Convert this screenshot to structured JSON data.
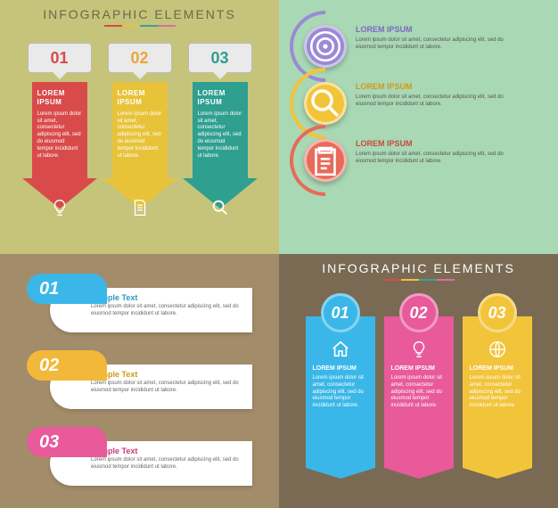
{
  "global": {
    "title_text": "INFOGRAPHIC ELEMENTS",
    "underline_colors": [
      "#d94a4a",
      "#e8c33a",
      "#3aa0a0",
      "#e06aa0"
    ],
    "lorem_short": "LOREM IPSUM",
    "lorem_body": "Lorem ipsum dolor sit amet, consectetur adipiscing elit, sed do eiusmod tempor incididunt ut labore."
  },
  "q1": {
    "type": "infographic",
    "background_color": "#c5c47a",
    "title_color": "#6a6a4a",
    "arrows": [
      {
        "num": "01",
        "num_color": "#d94a4a",
        "fill": "#d94a4a",
        "point": "#c03a3a",
        "icon": "bulb"
      },
      {
        "num": "02",
        "num_color": "#e8a63a",
        "fill": "#e8c33a",
        "point": "#cfa32a",
        "icon": "doc"
      },
      {
        "num": "03",
        "num_color": "#2f9f8f",
        "fill": "#2f9f8f",
        "point": "#1f7f6f",
        "icon": "search"
      }
    ]
  },
  "q2": {
    "type": "infographic",
    "background_color": "#a9d8b4",
    "items": [
      {
        "circle": "#9a8ad6",
        "arc": "#9a8ad6",
        "header_color": "#7a6ac6",
        "icon": "target"
      },
      {
        "circle": "#f2c43a",
        "arc": "#f2c43a",
        "header_color": "#d09a1a",
        "icon": "search"
      },
      {
        "circle": "#e86a5a",
        "arc": "#e86a5a",
        "header_color": "#c84a3a",
        "icon": "clipboard"
      }
    ]
  },
  "q3": {
    "type": "infographic",
    "background_color": "#a38c6a",
    "sample_label": "Sample Text",
    "items": [
      {
        "num": "01",
        "tab": "#3ab7e8",
        "stripe": "#3ab7e8",
        "header_color": "#2a97c8"
      },
      {
        "num": "02",
        "tab": "#f2b83a",
        "stripe": "#f2b83a",
        "header_color": "#d0981a"
      },
      {
        "num": "03",
        "tab": "#e85a9a",
        "stripe": "#e85a9a",
        "header_color": "#c83a7a"
      }
    ]
  },
  "q4": {
    "type": "infographic",
    "background_color": "#7a6a54",
    "title_color": "#ffffff",
    "cols": [
      {
        "num": "01",
        "circle": "#3ab7e8",
        "ribbon": "#3ab7e8",
        "point": "#2a97c8",
        "icon": "home"
      },
      {
        "num": "02",
        "circle": "#e85a9a",
        "ribbon": "#e85a9a",
        "point": "#c83a7a",
        "icon": "bulb"
      },
      {
        "num": "03",
        "circle": "#f2c43a",
        "ribbon": "#f2c43a",
        "point": "#d0a41a",
        "icon": "globe"
      }
    ]
  }
}
